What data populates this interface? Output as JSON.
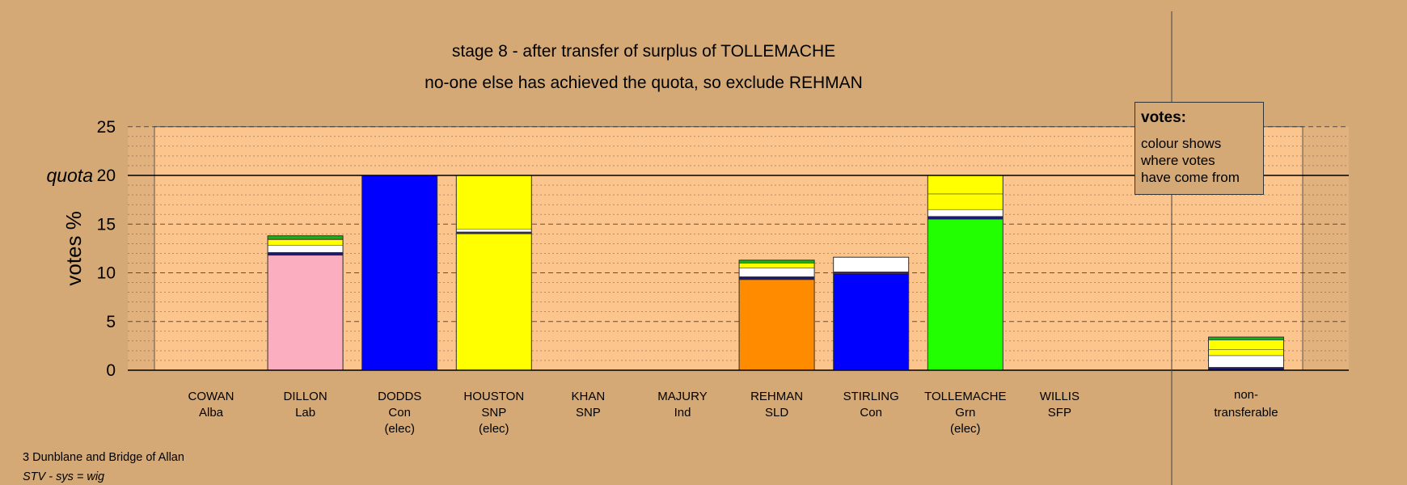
{
  "header": {
    "line1": "stage 8 - after transfer of surplus of TOLLEMACHE",
    "line2": "no-one else has achieved the quota, so exclude REHMAN"
  },
  "legend": {
    "title": "votes:",
    "lines": [
      "colour shows",
      "where votes",
      "have come from"
    ]
  },
  "footer": {
    "line1": "3 Dunblane and Bridge of Allan",
    "line2": "STV - sys = wig"
  },
  "colors": {
    "background": "#d4a976",
    "plot_area": "#fdc58e",
    "plot_wing": "#e2b27e"
  },
  "chart_data": {
    "type": "bar",
    "stacked": true,
    "ylabel": "votes %",
    "ylim": [
      0,
      25
    ],
    "yticks": [
      0,
      5,
      10,
      15,
      20,
      25
    ],
    "quota": {
      "label": "quota",
      "value": 20
    },
    "grid": true,
    "legend_position": "top-right",
    "candidates": [
      {
        "name": "COWAN",
        "party": "Alba",
        "status": "",
        "segments": []
      },
      {
        "name": "DILLON",
        "party": "Lab",
        "status": "",
        "segments": [
          {
            "value": 11.8,
            "color": "#fbaec0"
          },
          {
            "value": 0.3,
            "color": "#1a1a70"
          },
          {
            "value": 0.7,
            "color": "#ffffff"
          },
          {
            "value": 0.6,
            "color": "#ffff00"
          },
          {
            "value": 0.1,
            "color": "#ff9010"
          },
          {
            "value": 0.3,
            "color": "#1ab01a"
          }
        ]
      },
      {
        "name": "DODDS",
        "party": "Con",
        "status": "(elec)",
        "segments": [
          {
            "value": 20.0,
            "color": "#0000ff"
          }
        ]
      },
      {
        "name": "HOUSTON",
        "party": "SNP",
        "status": "(elec)",
        "segments": [
          {
            "value": 14.0,
            "color": "#ffff00"
          },
          {
            "value": 0.2,
            "color": "#333333"
          },
          {
            "value": 0.3,
            "color": "#ffffff"
          },
          {
            "value": 5.5,
            "color": "#ffff00"
          }
        ]
      },
      {
        "name": "KHAN",
        "party": "SNP",
        "status": "",
        "segments": []
      },
      {
        "name": "MAJURY",
        "party": "Ind",
        "status": "",
        "segments": []
      },
      {
        "name": "REHMAN",
        "party": "SLD",
        "status": "",
        "segments": [
          {
            "value": 9.3,
            "color": "#ff8c00"
          },
          {
            "value": 0.3,
            "color": "#1a1a70"
          },
          {
            "value": 0.9,
            "color": "#ffffff"
          },
          {
            "value": 0.5,
            "color": "#ffff00"
          },
          {
            "value": 0.3,
            "color": "#1ab01a"
          }
        ]
      },
      {
        "name": "STIRLING",
        "party": "Con",
        "status": "",
        "segments": [
          {
            "value": 9.9,
            "color": "#0000ff"
          },
          {
            "value": 0.2,
            "color": "#442266"
          },
          {
            "value": 1.5,
            "color": "#ffffff"
          }
        ]
      },
      {
        "name": "TOLLEMACHE",
        "party": "Grn",
        "status": "(elec)",
        "segments": [
          {
            "value": 15.5,
            "color": "#22ff00"
          },
          {
            "value": 0.3,
            "color": "#1a1a70"
          },
          {
            "value": 0.7,
            "color": "#ffffff"
          },
          {
            "value": 1.6,
            "color": "#ffff00"
          },
          {
            "value": 1.9,
            "color": "#ffff00"
          }
        ]
      },
      {
        "name": "WILLIS",
        "party": "SFP",
        "status": "",
        "segments": []
      }
    ],
    "nontransferable": {
      "label_line1": "non-",
      "label_line2": "transferable",
      "segments": [
        {
          "value": 0.3,
          "color": "#1a1a70"
        },
        {
          "value": 1.2,
          "color": "#ffffff"
        },
        {
          "value": 0.6,
          "color": "#ffff00"
        },
        {
          "value": 1.0,
          "color": "#ffff00"
        },
        {
          "value": 0.3,
          "color": "#1ab01a"
        }
      ]
    }
  }
}
